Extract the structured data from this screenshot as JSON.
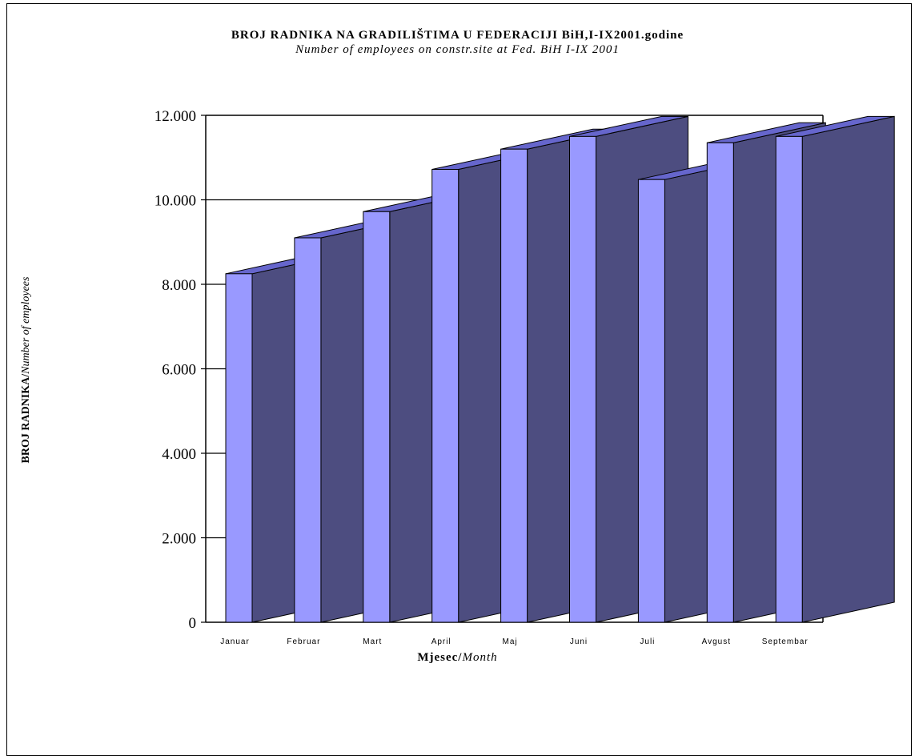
{
  "chart_data": {
    "type": "bar",
    "title": "BROJ RADNIKA NA GRADILIŠTIMA U FEDERACIJI BiH,I-IX2001.godine",
    "subtitle": "Number of employees on constr.site at Fed. BiH I-IX 2001",
    "ylabel_bold": "BROJ RADNIKA/",
    "ylabel_italic": "Number of employees",
    "xlabel_bold": "Mjesec/",
    "xlabel_italic": "Month",
    "categories": [
      "Januar",
      "Februar",
      "Mart",
      "April",
      "Maj",
      "Juni",
      "Juli",
      "Avgust",
      "Septembar"
    ],
    "values": [
      8250,
      9100,
      9720,
      10720,
      11200,
      11500,
      10480,
      11350,
      11500
    ],
    "ylim": [
      0,
      12000
    ],
    "yticks": [
      "0",
      "2.000",
      "4.000",
      "6.000",
      "8.000",
      "10.000",
      "12.000"
    ],
    "grid": true,
    "legend": "none",
    "colors": {
      "front": "#9999ff",
      "side": "#4d4d80",
      "top": "#6666cc"
    }
  }
}
